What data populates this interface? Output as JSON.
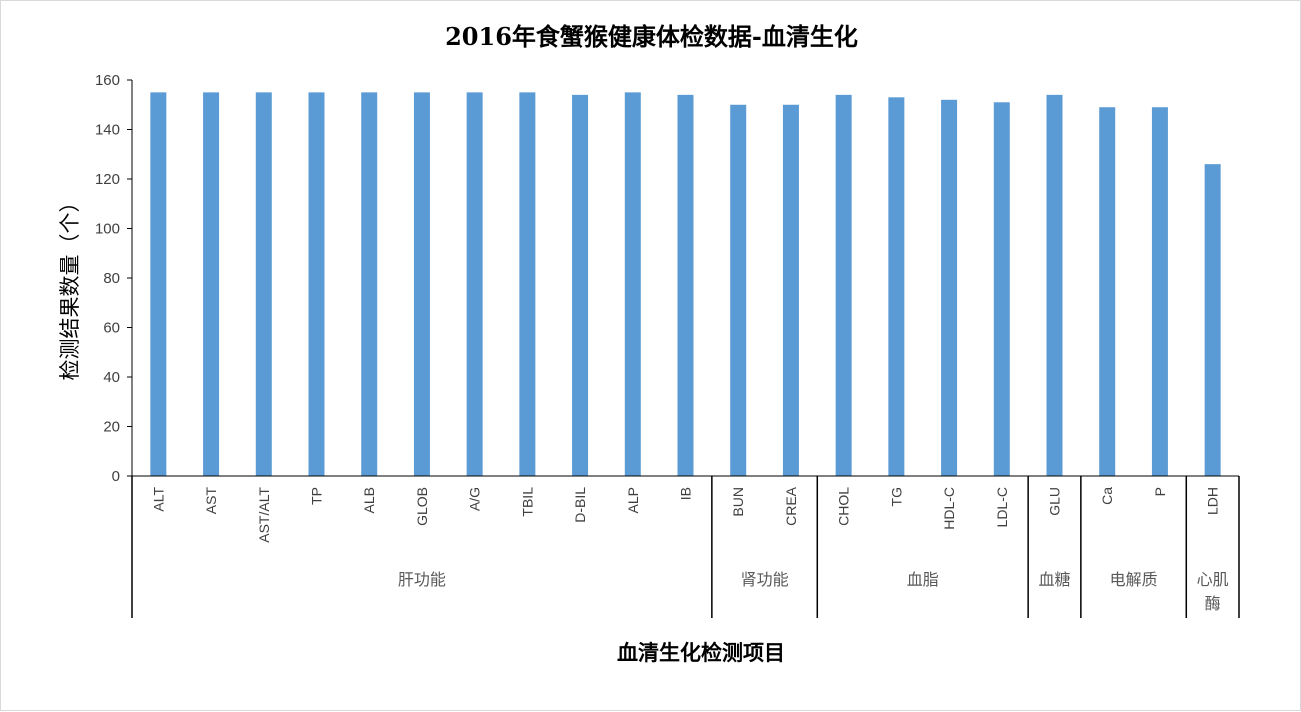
{
  "chart_data": {
    "type": "bar",
    "title": "2016年食蟹猴健康体检数据-血清生化",
    "xlabel": "血清生化检测项目",
    "ylabel": "检测结果数量（个）",
    "ylim": [
      0,
      160
    ],
    "yticks": [
      0,
      20,
      40,
      60,
      80,
      100,
      120,
      140,
      160
    ],
    "grid": false,
    "legend": "none",
    "bar_color": "#5b9bd5",
    "categories": [
      "ALT",
      "AST",
      "AST/ALT",
      "TP",
      "ALB",
      "GLOB",
      "A/G",
      "TBIL",
      "D-BIL",
      "ALP",
      "IB",
      "BUN",
      "CREA",
      "CHOL",
      "TG",
      "HDL-C",
      "LDL-C",
      "GLU",
      "Ca",
      "P",
      "LDH"
    ],
    "values": [
      155,
      155,
      155,
      155,
      155,
      155,
      155,
      155,
      154,
      155,
      154,
      150,
      150,
      154,
      153,
      152,
      151,
      154,
      149,
      149,
      126
    ],
    "groups": [
      {
        "label": "肝功能",
        "lines": [
          "肝功能"
        ],
        "count": 11
      },
      {
        "label": "肾功能",
        "lines": [
          "肾功能"
        ],
        "count": 2
      },
      {
        "label": "血脂",
        "lines": [
          "血脂"
        ],
        "count": 4
      },
      {
        "label": "血糖",
        "lines": [
          "血糖"
        ],
        "count": 1
      },
      {
        "label": "电解质",
        "lines": [
          "电解质"
        ],
        "count": 2
      },
      {
        "label": "心肌酶",
        "lines": [
          "心肌",
          "酶"
        ],
        "count": 1
      }
    ]
  }
}
